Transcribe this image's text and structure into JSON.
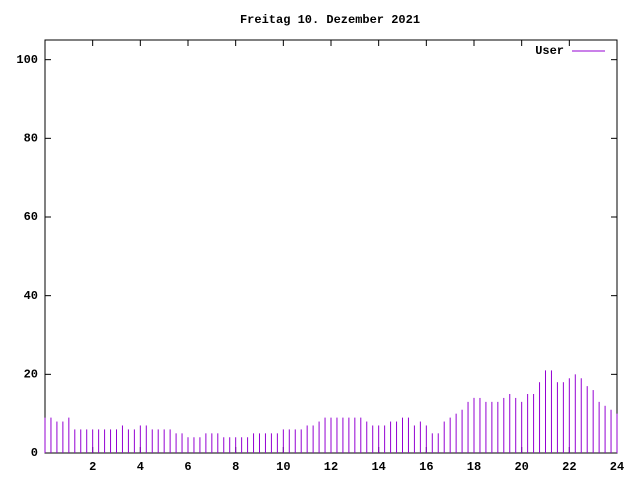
{
  "chart_data": {
    "type": "impulse",
    "title": "Freitag 10. Dezember 2021",
    "x": [
      0,
      0.25,
      0.5,
      0.75,
      1,
      1.25,
      1.5,
      1.75,
      2,
      2.25,
      2.5,
      2.75,
      3,
      3.25,
      3.5,
      3.75,
      4,
      4.25,
      4.5,
      4.75,
      5,
      5.25,
      5.5,
      5.75,
      6,
      6.25,
      6.5,
      6.75,
      7,
      7.25,
      7.5,
      7.75,
      8,
      8.25,
      8.5,
      8.75,
      9,
      9.25,
      9.5,
      9.75,
      10,
      10.25,
      10.5,
      10.75,
      11,
      11.25,
      11.5,
      11.75,
      12,
      12.25,
      12.5,
      12.75,
      13,
      13.25,
      13.5,
      13.75,
      14,
      14.25,
      14.5,
      14.75,
      15,
      15.25,
      15.5,
      15.75,
      16,
      16.25,
      16.5,
      16.75,
      17,
      17.25,
      17.5,
      17.75,
      18,
      18.25,
      18.5,
      18.75,
      19,
      19.25,
      19.5,
      19.75,
      20,
      20.25,
      20.5,
      20.75,
      21,
      21.25,
      21.5,
      21.75,
      22,
      22.25,
      22.5,
      22.75,
      23,
      23.25,
      23.5,
      23.75,
      24
    ],
    "series": [
      {
        "name": "User",
        "color": "#9400d3",
        "values": [
          9,
          9,
          8,
          8,
          9,
          6,
          6,
          6,
          6,
          6,
          6,
          6,
          6,
          7,
          6,
          6,
          7,
          7,
          6,
          6,
          6,
          6,
          5,
          5,
          4,
          4,
          4,
          5,
          5,
          5,
          4,
          4,
          4,
          4,
          4,
          5,
          5,
          5,
          5,
          5,
          6,
          6,
          6,
          6,
          7,
          7,
          8,
          9,
          9,
          9,
          9,
          9,
          9,
          9,
          8,
          7,
          7,
          7,
          8,
          8,
          9,
          9,
          7,
          8,
          7,
          5,
          5,
          8,
          9,
          10,
          11,
          13,
          14,
          14,
          13,
          13,
          13,
          14,
          15,
          14,
          13,
          15,
          15,
          18,
          21,
          21,
          18,
          18,
          19,
          20,
          19,
          17,
          16,
          13,
          12,
          11,
          10
        ]
      }
    ],
    "xlim": [
      0,
      24
    ],
    "xticks": [
      2,
      4,
      6,
      8,
      10,
      12,
      14,
      16,
      18,
      20,
      22,
      24
    ],
    "ylim": [
      0,
      105
    ],
    "yticks": [
      0,
      20,
      40,
      60,
      80,
      100
    ],
    "legend": "top-right"
  }
}
